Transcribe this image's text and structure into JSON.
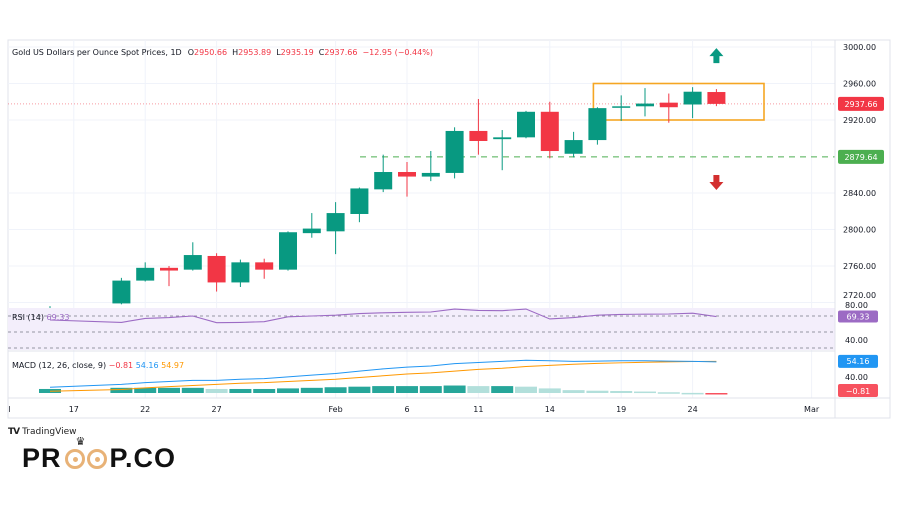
{
  "chart_data": {
    "type": "candlestick",
    "title": "Gold US Dollars per Ounce Spot Prices, 1D",
    "ohlc_header": {
      "o_label": "O",
      "o": "2950.66",
      "h_label": "H",
      "h": "2953.89",
      "l_label": "L",
      "l": "2935.19",
      "c_label": "C",
      "c": "2937.66",
      "change": "−12.95 (−0.44%)"
    },
    "ylim": [
      2712,
      3010
    ],
    "price_ticks": [
      "3000.00",
      "2960.00",
      "2920.00",
      "2840.00",
      "2800.00",
      "2760.00",
      "2720.00"
    ],
    "price_tick_values": [
      3000,
      2960,
      2920,
      2840,
      2800,
      2760,
      2720
    ],
    "current_price": {
      "label": "2937.66",
      "value": 2937.66,
      "color": "#f23645"
    },
    "support_level": {
      "label": "2879.64",
      "value": 2879.64,
      "color": "#4caf50"
    },
    "range_box": {
      "from_bar": 23,
      "to_bar": 30,
      "top": 2960,
      "bottom": 2920,
      "color": "#f5a623"
    },
    "arrows": [
      {
        "dir": "up",
        "bar": 28,
        "value": 2990,
        "color": "#089981"
      },
      {
        "dir": "down",
        "bar": 28,
        "value": 2852,
        "color": "#d32f2f"
      }
    ],
    "x_ticks": [
      {
        "label": "l",
        "bar": -1.75
      },
      {
        "label": "17",
        "bar": 1
      },
      {
        "label": "22",
        "bar": 4
      },
      {
        "label": "27",
        "bar": 7
      },
      {
        "label": "Feb",
        "bar": 12
      },
      {
        "label": "6",
        "bar": 15
      },
      {
        "label": "11",
        "bar": 18
      },
      {
        "label": "14",
        "bar": 21
      },
      {
        "label": "19",
        "bar": 24
      },
      {
        "label": "24",
        "bar": 27
      },
      {
        "label": "Mar",
        "bar": 32
      }
    ],
    "candles": [
      {
        "bar": 0,
        "o": 2712,
        "h": 2716,
        "l": 2706,
        "c": 2713
      },
      {
        "bar": 3,
        "o": 2719,
        "h": 2747,
        "l": 2718,
        "c": 2744
      },
      {
        "bar": 4,
        "o": 2744,
        "h": 2764,
        "l": 2743,
        "c": 2758
      },
      {
        "bar": 5,
        "o": 2758,
        "h": 2760,
        "l": 2738,
        "c": 2755
      },
      {
        "bar": 6,
        "o": 2756,
        "h": 2786,
        "l": 2755,
        "c": 2772
      },
      {
        "bar": 7,
        "o": 2771,
        "h": 2774,
        "l": 2732,
        "c": 2742
      },
      {
        "bar": 8,
        "o": 2742,
        "h": 2767,
        "l": 2737,
        "c": 2764
      },
      {
        "bar": 9,
        "o": 2764,
        "h": 2768,
        "l": 2746,
        "c": 2756
      },
      {
        "bar": 10,
        "o": 2756,
        "h": 2798,
        "l": 2755,
        "c": 2797
      },
      {
        "bar": 11,
        "o": 2796,
        "h": 2818,
        "l": 2791,
        "c": 2801
      },
      {
        "bar": 12,
        "o": 2798,
        "h": 2830,
        "l": 2773,
        "c": 2818
      },
      {
        "bar": 13,
        "o": 2817,
        "h": 2846,
        "l": 2808,
        "c": 2845
      },
      {
        "bar": 14,
        "o": 2844,
        "h": 2882,
        "l": 2841,
        "c": 2863
      },
      {
        "bar": 15,
        "o": 2863,
        "h": 2874,
        "l": 2836,
        "c": 2858
      },
      {
        "bar": 16,
        "o": 2858,
        "h": 2886,
        "l": 2853,
        "c": 2862
      },
      {
        "bar": 17,
        "o": 2862,
        "h": 2912,
        "l": 2856,
        "c": 2908
      },
      {
        "bar": 18,
        "o": 2908,
        "h": 2943,
        "l": 2882,
        "c": 2897
      },
      {
        "bar": 19,
        "o": 2899,
        "h": 2909,
        "l": 2865,
        "c": 2901
      },
      {
        "bar": 20,
        "o": 2901,
        "h": 2930,
        "l": 2900,
        "c": 2929
      },
      {
        "bar": 21,
        "o": 2929,
        "h": 2940,
        "l": 2878,
        "c": 2886
      },
      {
        "bar": 22,
        "o": 2883,
        "h": 2907,
        "l": 2879,
        "c": 2898
      },
      {
        "bar": 23,
        "o": 2898,
        "h": 2934,
        "l": 2893,
        "c": 2933
      },
      {
        "bar": 24,
        "o": 2934,
        "h": 2947,
        "l": 2919,
        "c": 2935
      },
      {
        "bar": 25,
        "o": 2935,
        "h": 2955,
        "l": 2924,
        "c": 2938
      },
      {
        "bar": 26,
        "o": 2939,
        "h": 2949,
        "l": 2917,
        "c": 2934
      },
      {
        "bar": 27,
        "o": 2937,
        "h": 2956,
        "l": 2922,
        "c": 2951
      },
      {
        "bar": 28,
        "o": 2950.66,
        "h": 2953.89,
        "l": 2935.19,
        "c": 2937.66
      }
    ],
    "up_color": "#089981",
    "down_color": "#f23645",
    "rsi": {
      "label": "RSI (14)",
      "value_label": "69.33",
      "color": "#9c6bc4",
      "ticks": [
        "80.00",
        "40.00"
      ],
      "levels": [
        70,
        50,
        30
      ],
      "values": [
        65,
        62,
        67,
        68,
        70,
        61.7,
        62,
        62.9,
        69,
        70,
        71,
        73,
        74,
        74.6,
        75,
        78.7,
        77,
        76.7,
        78.7,
        66.3,
        68,
        71,
        72,
        72.3,
        72.5,
        73.5,
        69.33
      ]
    },
    "macd": {
      "label": "MACD (12, 26, close, 9)",
      "hist_label": "−0.81",
      "macd_label": "54.16",
      "signal_label": "54.97",
      "tick": "40.00",
      "macd_color": "#2196f3",
      "signal_color": "#ff9800",
      "macd": [
        10,
        15,
        18,
        20,
        22,
        22,
        24,
        25,
        28,
        31,
        34,
        38,
        42,
        45,
        47,
        51,
        53,
        55,
        57,
        56,
        55,
        55.5,
        56,
        56,
        55.5,
        55,
        54.16
      ],
      "signal": [
        3,
        6,
        9,
        11,
        13,
        15,
        17,
        18,
        20,
        22,
        24,
        27,
        30,
        33,
        35,
        38,
        41,
        43,
        46,
        48,
        50,
        51.5,
        52.5,
        53.5,
        54.2,
        54.8,
        54.97
      ]
    }
  },
  "branding": {
    "tradingview": "TradingView",
    "logo_left": "PR",
    "logo_right": "P.CO"
  }
}
